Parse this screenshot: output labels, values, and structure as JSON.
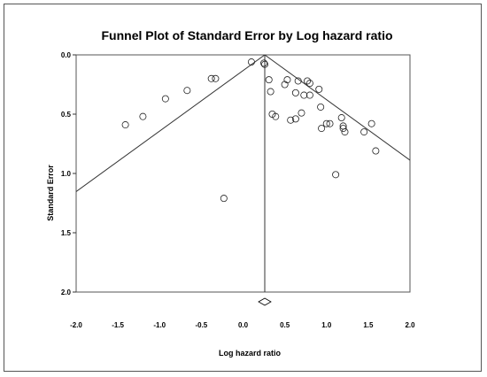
{
  "chart_data": {
    "type": "scatter",
    "title": "Funnel Plot of Standard Error by Log hazard ratio",
    "xlabel": "Log hazard ratio",
    "ylabel": "Standard Error",
    "xlim": [
      -2.0,
      2.0
    ],
    "ylim": [
      0.0,
      2.0
    ],
    "y_inverted": true,
    "x_ticks": [
      "-2.0",
      "-1.5",
      "-1.0",
      "-0.5",
      "0.0",
      "0.5",
      "1.0",
      "1.5",
      "2.0"
    ],
    "y_ticks": [
      "0.0",
      "0.5",
      "1.0",
      "1.5",
      "2.0"
    ],
    "x_tick_values": [
      -2.0,
      -1.5,
      -1.0,
      -0.5,
      0.0,
      0.5,
      1.0,
      1.5,
      2.0
    ],
    "y_tick_values": [
      0.0,
      0.5,
      1.0,
      1.5,
      2.0
    ],
    "grid": false,
    "marker": "open-circle",
    "summary_effect": 0.26,
    "pseudo_ci_multiplier": 1.96,
    "points": [
      {
        "x": -1.41,
        "y": 0.59
      },
      {
        "x": -1.2,
        "y": 0.52
      },
      {
        "x": -0.93,
        "y": 0.37
      },
      {
        "x": -0.67,
        "y": 0.3
      },
      {
        "x": -0.38,
        "y": 0.2
      },
      {
        "x": -0.33,
        "y": 0.2
      },
      {
        "x": -0.23,
        "y": 1.21
      },
      {
        "x": 0.1,
        "y": 0.06
      },
      {
        "x": 0.25,
        "y": 0.07
      },
      {
        "x": 0.26,
        "y": 0.08
      },
      {
        "x": 0.31,
        "y": 0.21
      },
      {
        "x": 0.33,
        "y": 0.31
      },
      {
        "x": 0.35,
        "y": 0.5
      },
      {
        "x": 0.39,
        "y": 0.52
      },
      {
        "x": 0.5,
        "y": 0.25
      },
      {
        "x": 0.53,
        "y": 0.21
      },
      {
        "x": 0.57,
        "y": 0.55
      },
      {
        "x": 0.63,
        "y": 0.54
      },
      {
        "x": 0.63,
        "y": 0.32
      },
      {
        "x": 0.66,
        "y": 0.22
      },
      {
        "x": 0.7,
        "y": 0.49
      },
      {
        "x": 0.73,
        "y": 0.34
      },
      {
        "x": 0.77,
        "y": 0.22
      },
      {
        "x": 0.8,
        "y": 0.24
      },
      {
        "x": 0.8,
        "y": 0.34
      },
      {
        "x": 0.91,
        "y": 0.29
      },
      {
        "x": 0.93,
        "y": 0.44
      },
      {
        "x": 0.94,
        "y": 0.62
      },
      {
        "x": 1.0,
        "y": 0.58
      },
      {
        "x": 1.04,
        "y": 0.58
      },
      {
        "x": 1.11,
        "y": 1.01
      },
      {
        "x": 1.18,
        "y": 0.53
      },
      {
        "x": 1.2,
        "y": 0.62
      },
      {
        "x": 1.2,
        "y": 0.6
      },
      {
        "x": 1.22,
        "y": 0.65
      },
      {
        "x": 1.45,
        "y": 0.65
      },
      {
        "x": 1.54,
        "y": 0.58
      },
      {
        "x": 1.59,
        "y": 0.81
      }
    ]
  }
}
